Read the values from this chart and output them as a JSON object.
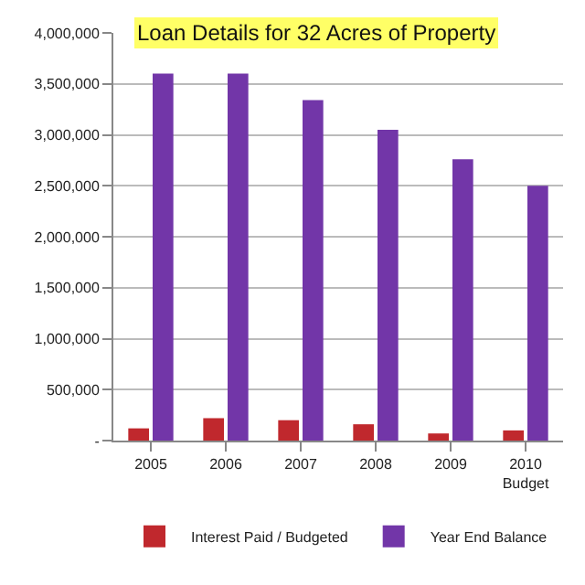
{
  "chart_data": {
    "type": "bar",
    "title": "Loan Details for 32 Acres of Property",
    "categories": [
      "2005",
      "2006",
      "2007",
      "2008",
      "2009",
      "2010\nBudget"
    ],
    "series": [
      {
        "name": "Interest Paid / Budgeted",
        "color": "#c0282d",
        "values": [
          120000,
          220000,
          200000,
          160000,
          70000,
          100000
        ]
      },
      {
        "name": "Year End Balance",
        "color": "#7236a8",
        "values": [
          3600000,
          3600000,
          3340000,
          3050000,
          2760000,
          2500000
        ]
      }
    ],
    "ylim": [
      0,
      4000000
    ],
    "yticks": [
      {
        "value": 0,
        "label": "-"
      },
      {
        "value": 500000,
        "label": "500,000"
      },
      {
        "value": 1000000,
        "label": "1,000,000"
      },
      {
        "value": 1500000,
        "label": "1,500,000"
      },
      {
        "value": 2000000,
        "label": "2,000,000"
      },
      {
        "value": 2500000,
        "label": "2,500,000"
      },
      {
        "value": 3000000,
        "label": "3,000,000"
      },
      {
        "value": 3500000,
        "label": "3,500,000"
      },
      {
        "value": 4000000,
        "label": "4,000,000"
      }
    ],
    "grid": "y",
    "legend": "bottom"
  }
}
